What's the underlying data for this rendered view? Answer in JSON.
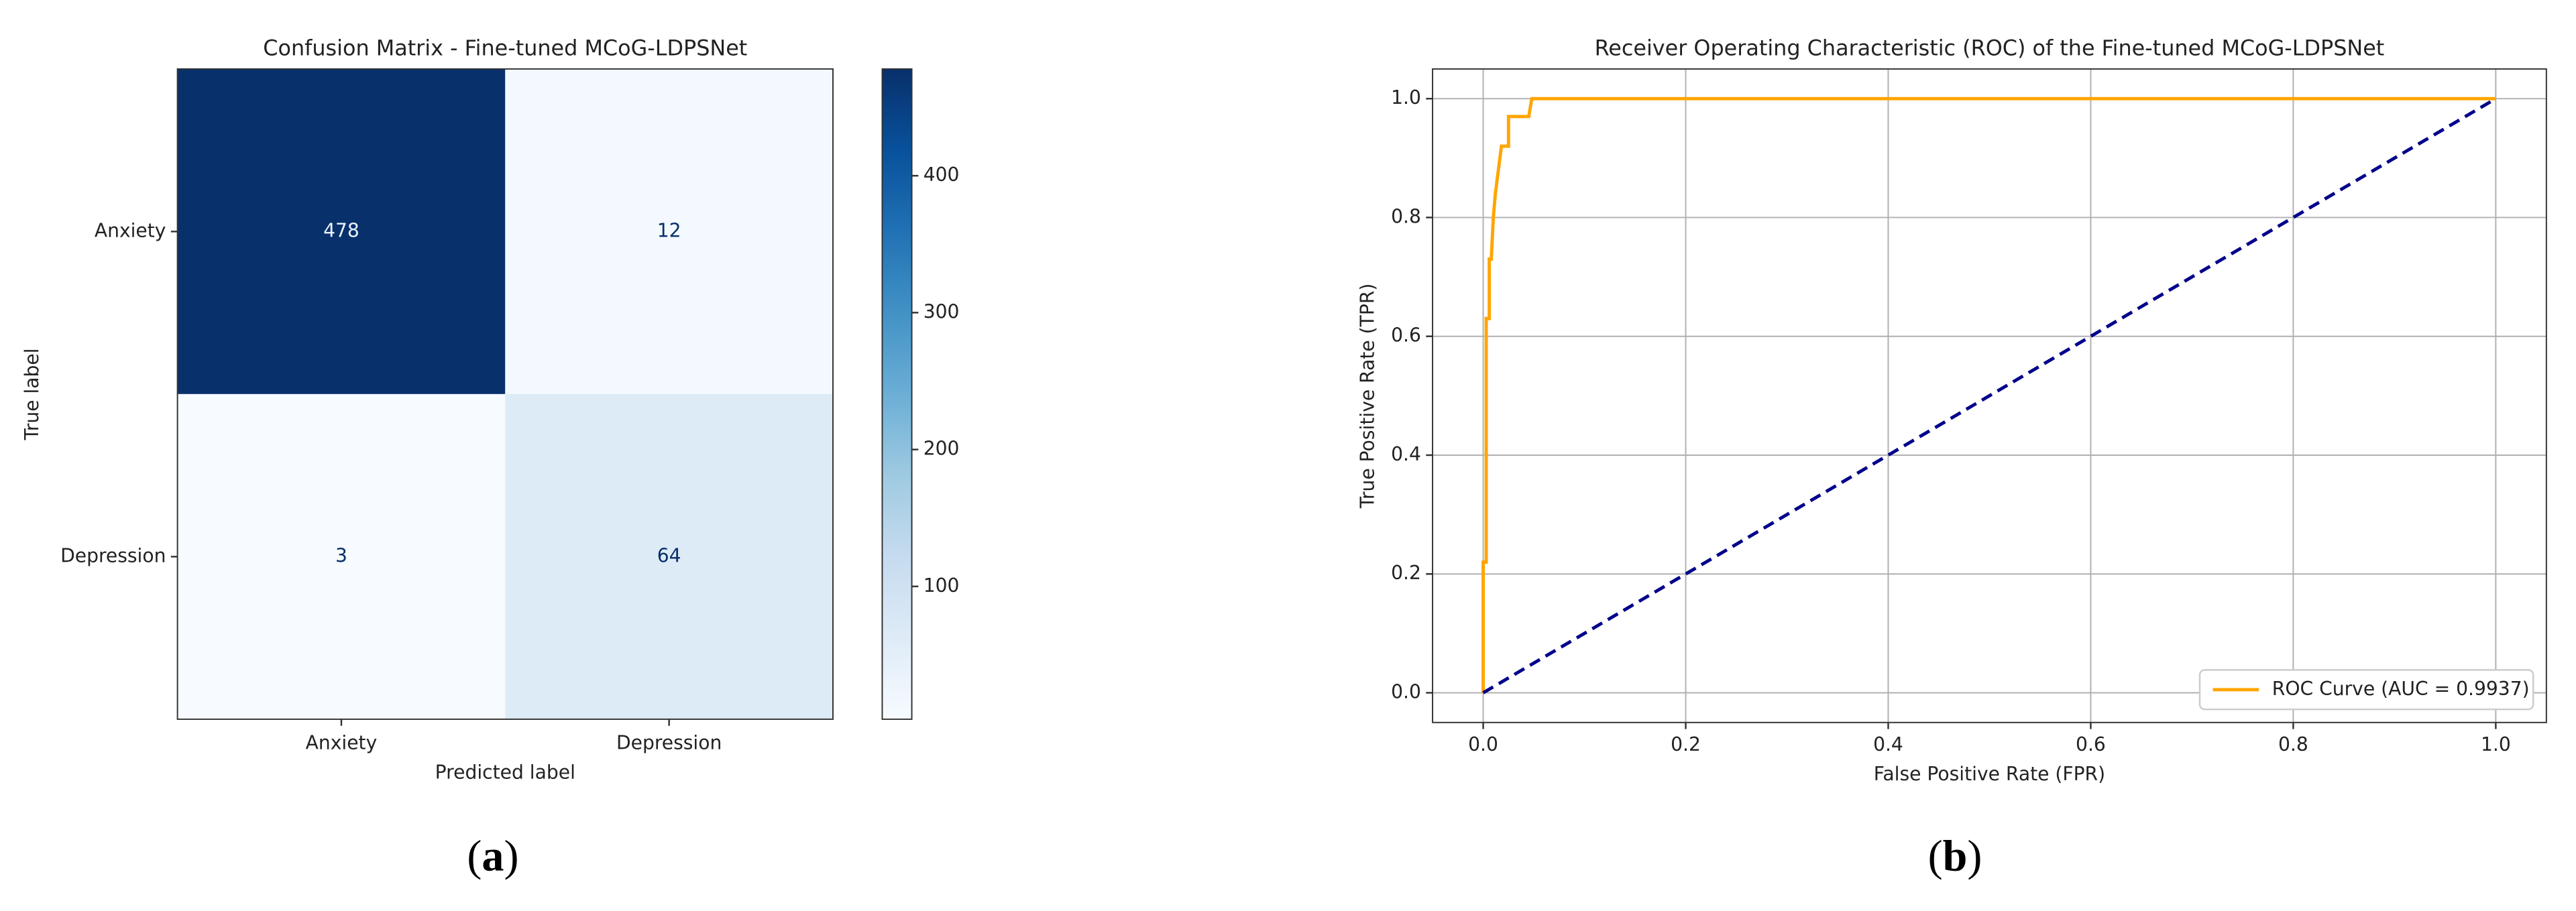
{
  "chart_data": [
    {
      "type": "heatmap",
      "title": "Confusion Matrix - Fine-tuned MCoG-LDPSNet",
      "x_categories": [
        "Anxiety",
        "Depression"
      ],
      "y_categories": [
        "Anxiety",
        "Depression"
      ],
      "matrix": [
        [
          478,
          12
        ],
        [
          3,
          64
        ]
      ],
      "colormap": "Blues",
      "xlabel": "Predicted label",
      "ylabel": "True label",
      "colorbar_ticks": [
        100,
        200,
        300,
        400
      ],
      "caption": "a"
    },
    {
      "type": "line",
      "title": "Receiver Operating Characteristic (ROC) of the Fine-tuned MCoG-LDPSNet",
      "xlabel": "False Positive Rate (FPR)",
      "ylabel": "True Positive Rate (TPR)",
      "series": [
        {
          "name": "ROC Curve (AUC = 0.9937)",
          "color": "#ffa500",
          "dash": false,
          "x": [
            0,
            0,
            0.003,
            0.003,
            0.006,
            0.006,
            0.008,
            0.01,
            0.012,
            0.015,
            0.018,
            0.02,
            0.025,
            0.025,
            0.045,
            0.048,
            1
          ],
          "values": [
            0,
            0.22,
            0.22,
            0.63,
            0.63,
            0.73,
            0.73,
            0.8,
            0.84,
            0.88,
            0.92,
            0.92,
            0.92,
            0.97,
            0.97,
            1,
            1
          ]
        },
        {
          "color": "#00008b",
          "dash": true,
          "x": [
            0,
            1
          ],
          "values": [
            0,
            1
          ]
        }
      ],
      "xlim": [
        -0.05,
        1.05
      ],
      "ylim": [
        -0.05,
        1.05
      ],
      "xticks": [
        {
          "value": 0,
          "label": "0.0"
        },
        0.2,
        0.4,
        0.6,
        0.8,
        {
          "value": 1,
          "label": "1.0"
        }
      ],
      "yticks": [
        {
          "value": 0,
          "label": "0.0"
        },
        0.2,
        0.4,
        0.6,
        0.8,
        {
          "value": 1,
          "label": "1.0"
        }
      ],
      "grid": true,
      "legend": "lower right",
      "caption": "b"
    }
  ]
}
